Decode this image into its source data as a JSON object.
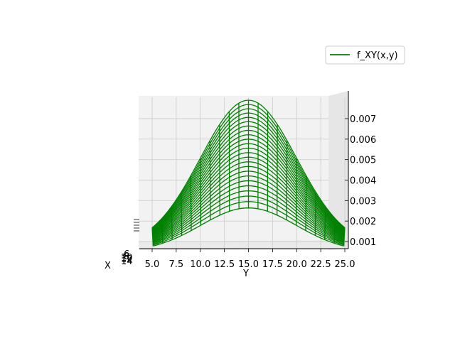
{
  "chart_data": {
    "type": "wireframe-3d",
    "series": [
      {
        "name": "f_XY(x,y)",
        "color": "#008000"
      }
    ],
    "xlabel": "X",
    "ylabel": "Y",
    "zlabel": "",
    "x_ticks": [
      "6",
      "8",
      "10",
      "12",
      "14"
    ],
    "y_ticks": [
      "5.0",
      "7.5",
      "10.0",
      "12.5",
      "15.0",
      "17.5",
      "20.0",
      "22.5",
      "25.0"
    ],
    "z_ticks": [
      "0.001",
      "0.002",
      "0.003",
      "0.004",
      "0.005",
      "0.006",
      "0.007"
    ],
    "ylim": [
      4.0,
      26.0
    ],
    "zlim": [
      0.0007,
      0.008
    ],
    "y_peak": 15.0,
    "z_peak_max": 0.0079,
    "legend_position": "upper-right",
    "grid": true,
    "view": "azimuth 0, elevation 0 (looking along X axis)"
  }
}
